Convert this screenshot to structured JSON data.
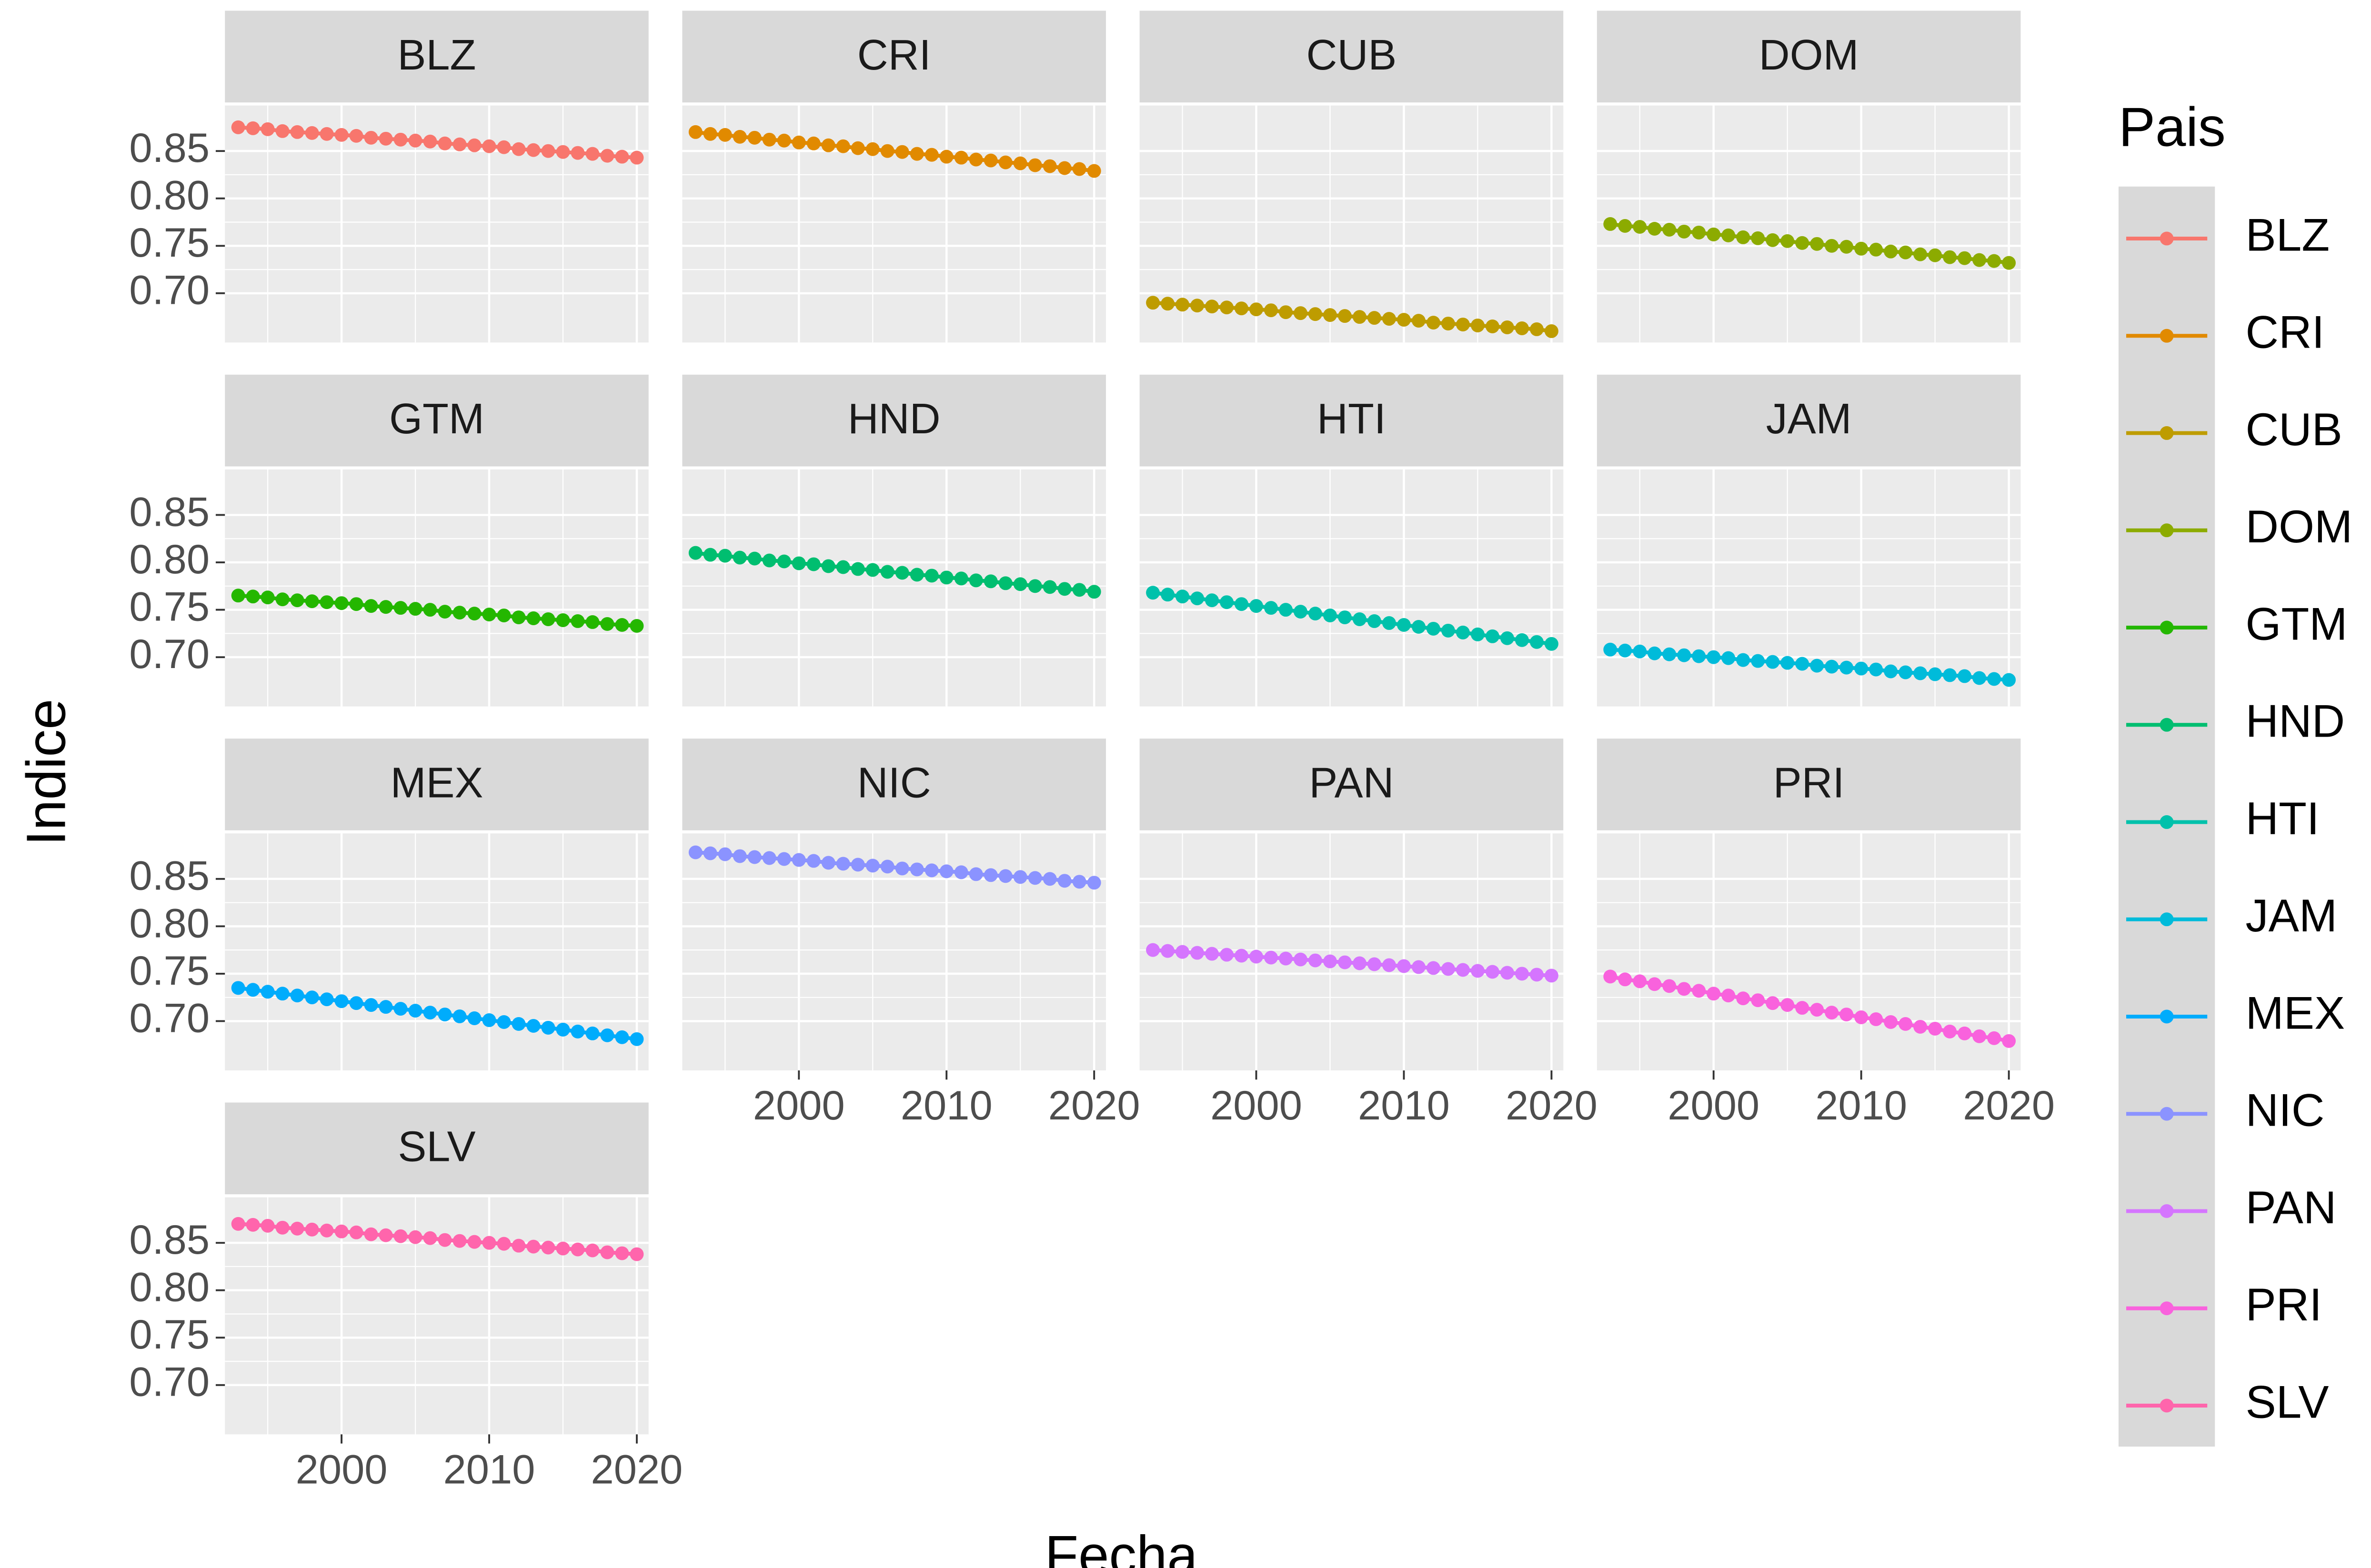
{
  "chart_data": {
    "type": "line",
    "xlabel": "Fecha",
    "ylabel": "Indice",
    "legend_title": "Pais",
    "x": [
      1993,
      1994,
      1995,
      1996,
      1997,
      1998,
      1999,
      2000,
      2001,
      2002,
      2003,
      2004,
      2005,
      2006,
      2007,
      2008,
      2009,
      2010,
      2011,
      2012,
      2013,
      2014,
      2015,
      2016,
      2017,
      2018,
      2019,
      2020
    ],
    "xlim": [
      1992.1,
      2020.8
    ],
    "xticks": [
      2000,
      2010,
      2020
    ],
    "ylim": [
      0.648,
      0.898
    ],
    "yticks": [
      {
        "value": 0.7,
        "label": "0.70"
      },
      0.75,
      {
        "value": 0.8,
        "label": "0.80"
      },
      0.85
    ],
    "grid": true,
    "series": [
      {
        "name": "BLZ",
        "color": "#F8766D",
        "values": [
          0.875,
          0.874,
          0.873,
          0.871,
          0.87,
          0.869,
          0.868,
          0.867,
          0.866,
          0.864,
          0.863,
          0.862,
          0.861,
          0.86,
          0.858,
          0.857,
          0.856,
          0.855,
          0.854,
          0.852,
          0.851,
          0.85,
          0.849,
          0.848,
          0.847,
          0.845,
          0.844,
          0.843
        ]
      },
      {
        "name": "CRI",
        "color": "#E18A00",
        "values": [
          0.87,
          0.868,
          0.867,
          0.865,
          0.864,
          0.862,
          0.861,
          0.859,
          0.858,
          0.856,
          0.855,
          0.853,
          0.852,
          0.85,
          0.849,
          0.847,
          0.846,
          0.844,
          0.843,
          0.841,
          0.84,
          0.838,
          0.837,
          0.835,
          0.834,
          0.832,
          0.831,
          0.829
        ]
      },
      {
        "name": "CUB",
        "color": "#BE9C00",
        "values": [
          0.69,
          0.689,
          0.688,
          0.687,
          0.686,
          0.685,
          0.684,
          0.683,
          0.682,
          0.68,
          0.679,
          0.678,
          0.677,
          0.676,
          0.675,
          0.674,
          0.673,
          0.672,
          0.671,
          0.669,
          0.668,
          0.667,
          0.666,
          0.665,
          0.664,
          0.663,
          0.662,
          0.66
        ]
      },
      {
        "name": "DOM",
        "color": "#8CAB00",
        "values": [
          0.773,
          0.771,
          0.77,
          0.768,
          0.767,
          0.765,
          0.764,
          0.762,
          0.761,
          0.759,
          0.758,
          0.756,
          0.755,
          0.753,
          0.752,
          0.75,
          0.749,
          0.747,
          0.746,
          0.744,
          0.743,
          0.741,
          0.74,
          0.738,
          0.737,
          0.735,
          0.734,
          0.732
        ]
      },
      {
        "name": "GTM",
        "color": "#24B700",
        "values": [
          0.765,
          0.764,
          0.763,
          0.761,
          0.76,
          0.759,
          0.758,
          0.757,
          0.756,
          0.754,
          0.753,
          0.752,
          0.751,
          0.75,
          0.748,
          0.747,
          0.746,
          0.745,
          0.744,
          0.742,
          0.741,
          0.74,
          0.739,
          0.738,
          0.737,
          0.735,
          0.734,
          0.733
        ]
      },
      {
        "name": "HND",
        "color": "#00BE70",
        "values": [
          0.81,
          0.808,
          0.807,
          0.805,
          0.804,
          0.802,
          0.801,
          0.799,
          0.798,
          0.796,
          0.795,
          0.793,
          0.792,
          0.79,
          0.789,
          0.787,
          0.786,
          0.784,
          0.783,
          0.781,
          0.78,
          0.778,
          0.777,
          0.775,
          0.774,
          0.772,
          0.771,
          0.769
        ]
      },
      {
        "name": "HTI",
        "color": "#00C1AB",
        "values": [
          0.768,
          0.766,
          0.764,
          0.762,
          0.76,
          0.758,
          0.756,
          0.754,
          0.752,
          0.75,
          0.748,
          0.746,
          0.744,
          0.742,
          0.74,
          0.738,
          0.736,
          0.734,
          0.732,
          0.73,
          0.728,
          0.726,
          0.724,
          0.722,
          0.72,
          0.718,
          0.716,
          0.714
        ]
      },
      {
        "name": "JAM",
        "color": "#00BBDA",
        "values": [
          0.708,
          0.707,
          0.706,
          0.704,
          0.703,
          0.702,
          0.701,
          0.7,
          0.699,
          0.697,
          0.696,
          0.695,
          0.694,
          0.693,
          0.691,
          0.69,
          0.689,
          0.688,
          0.687,
          0.685,
          0.684,
          0.683,
          0.682,
          0.681,
          0.68,
          0.678,
          0.677,
          0.676
        ]
      },
      {
        "name": "MEX",
        "color": "#00ACFC",
        "values": [
          0.735,
          0.733,
          0.731,
          0.729,
          0.727,
          0.725,
          0.723,
          0.721,
          0.719,
          0.717,
          0.715,
          0.713,
          0.711,
          0.709,
          0.707,
          0.705,
          0.703,
          0.701,
          0.699,
          0.697,
          0.695,
          0.693,
          0.691,
          0.689,
          0.687,
          0.685,
          0.683,
          0.681
        ]
      },
      {
        "name": "NIC",
        "color": "#8B93FF",
        "values": [
          0.878,
          0.877,
          0.876,
          0.874,
          0.873,
          0.872,
          0.871,
          0.87,
          0.869,
          0.867,
          0.866,
          0.865,
          0.864,
          0.863,
          0.861,
          0.86,
          0.859,
          0.858,
          0.857,
          0.855,
          0.854,
          0.853,
          0.852,
          0.851,
          0.85,
          0.848,
          0.847,
          0.846
        ]
      },
      {
        "name": "PAN",
        "color": "#D575FE",
        "values": [
          0.775,
          0.774,
          0.773,
          0.772,
          0.771,
          0.77,
          0.769,
          0.768,
          0.767,
          0.766,
          0.765,
          0.764,
          0.763,
          0.762,
          0.761,
          0.76,
          0.759,
          0.758,
          0.757,
          0.756,
          0.755,
          0.754,
          0.753,
          0.752,
          0.751,
          0.75,
          0.749,
          0.748
        ]
      },
      {
        "name": "PRI",
        "color": "#F962DD",
        "values": [
          0.747,
          0.744,
          0.742,
          0.739,
          0.737,
          0.734,
          0.732,
          0.729,
          0.727,
          0.724,
          0.722,
          0.719,
          0.717,
          0.714,
          0.712,
          0.709,
          0.707,
          0.704,
          0.702,
          0.699,
          0.697,
          0.694,
          0.692,
          0.689,
          0.687,
          0.684,
          0.682,
          0.679
        ]
      },
      {
        "name": "SLV",
        "color": "#FF65AC",
        "values": [
          0.87,
          0.869,
          0.868,
          0.866,
          0.865,
          0.864,
          0.863,
          0.862,
          0.861,
          0.859,
          0.858,
          0.857,
          0.856,
          0.855,
          0.853,
          0.852,
          0.851,
          0.85,
          0.849,
          0.847,
          0.846,
          0.845,
          0.844,
          0.843,
          0.842,
          0.84,
          0.839,
          0.838
        ]
      }
    ]
  }
}
